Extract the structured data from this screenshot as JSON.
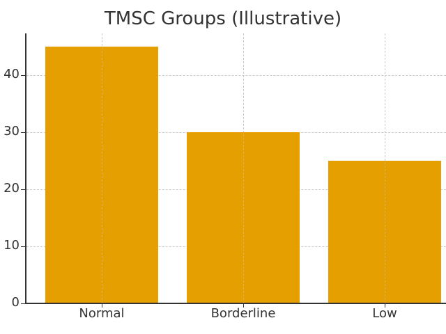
{
  "chart_data": {
    "type": "bar",
    "title": "TMSC Groups (Illustrative)",
    "categories": [
      "Normal",
      "Borderline",
      "Low"
    ],
    "values": [
      45,
      30,
      25
    ],
    "xlabel": "",
    "ylabel": "",
    "ylim": [
      0,
      47.25
    ],
    "yticks": [
      0,
      10,
      20,
      30,
      40
    ],
    "grid": true,
    "legend": null,
    "bar_color": "#E69F00"
  }
}
